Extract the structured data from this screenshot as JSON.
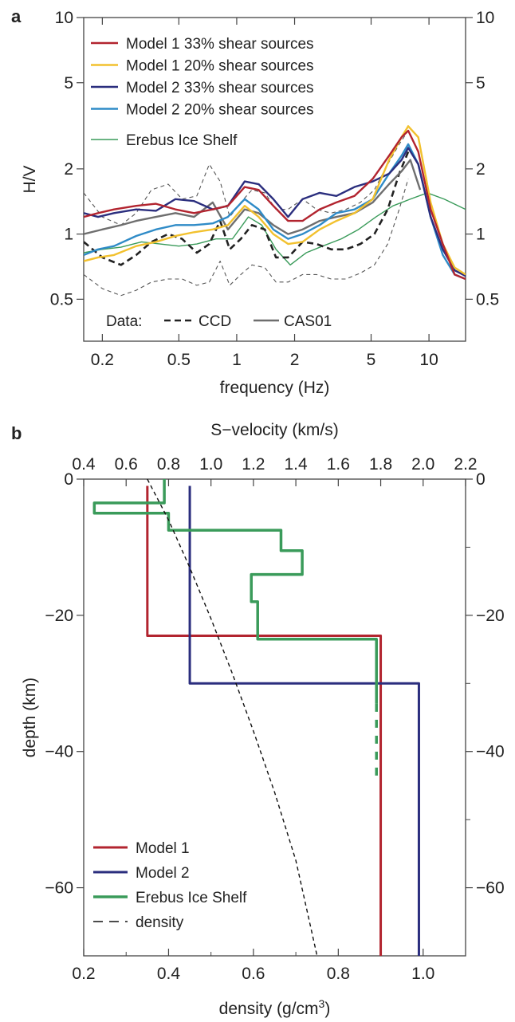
{
  "chart_data": [
    {
      "panel": "a",
      "type": "line",
      "xlabel": "frequency (Hz)",
      "ylabel": "H/V",
      "xscale": "log",
      "yscale": "log",
      "xlim": [
        0.16,
        15.5
      ],
      "ylim": [
        0.32,
        10
      ],
      "xticks": [
        0.2,
        0.5,
        1,
        2,
        5,
        10
      ],
      "xtick_labels": [
        "0.2",
        "0.5",
        "1",
        "2",
        "5",
        "10"
      ],
      "yticks": [
        0.5,
        1,
        2,
        5,
        10
      ],
      "ytick_labels": [
        "0.5",
        "1",
        "2",
        "5",
        "10"
      ],
      "right_ytick_labels": [
        "0.5",
        "1",
        "2",
        "5",
        "10"
      ],
      "legend_position": "top-left",
      "data_legend": {
        "prefix": "Data:",
        "items": [
          "CCD",
          "CAS01"
        ]
      },
      "series": [
        {
          "name": "Model 1  33% shear sources",
          "color": "#b2242f",
          "width": 2.4,
          "x": [
            0.16,
            0.19,
            0.23,
            0.3,
            0.38,
            0.48,
            0.6,
            0.75,
            0.9,
            1.1,
            1.3,
            1.55,
            1.85,
            2.2,
            2.7,
            3.3,
            4.1,
            5.1,
            6.2,
            7.2,
            7.8,
            8.8,
            10.2,
            11.8,
            13.6,
            15.5
          ],
          "y": [
            1.2,
            1.25,
            1.3,
            1.35,
            1.38,
            1.3,
            1.25,
            1.3,
            1.35,
            1.65,
            1.6,
            1.35,
            1.15,
            1.15,
            1.3,
            1.4,
            1.5,
            1.8,
            2.3,
            2.8,
            3.0,
            2.4,
            1.3,
            0.9,
            0.65,
            0.62
          ]
        },
        {
          "name": "Model 1  20% shear sources",
          "color": "#f2c12e",
          "width": 2.4,
          "x": [
            0.16,
            0.19,
            0.23,
            0.3,
            0.38,
            0.48,
            0.6,
            0.75,
            0.9,
            1.1,
            1.3,
            1.55,
            1.85,
            2.2,
            2.7,
            3.3,
            4.1,
            5.1,
            6.2,
            7.2,
            7.8,
            8.8,
            10.2,
            11.8,
            13.6,
            15.5
          ],
          "y": [
            0.75,
            0.78,
            0.8,
            0.88,
            0.92,
            0.98,
            1.02,
            1.05,
            1.1,
            1.35,
            1.2,
            1.0,
            0.9,
            0.92,
            1.05,
            1.15,
            1.25,
            1.45,
            2.2,
            2.8,
            3.15,
            2.8,
            1.4,
            0.9,
            0.7,
            0.65
          ]
        },
        {
          "name": "Model 2  33% shear sources",
          "color": "#2b2e7e",
          "width": 2.4,
          "x": [
            0.16,
            0.19,
            0.23,
            0.3,
            0.38,
            0.48,
            0.6,
            0.75,
            0.9,
            1.1,
            1.3,
            1.55,
            1.85,
            2.2,
            2.7,
            3.3,
            4.1,
            5.1,
            6.2,
            7.2,
            7.8,
            8.8,
            10.2,
            11.8,
            13.6,
            15.5
          ],
          "y": [
            1.25,
            1.2,
            1.25,
            1.3,
            1.28,
            1.45,
            1.42,
            1.3,
            1.35,
            1.75,
            1.7,
            1.45,
            1.2,
            1.45,
            1.55,
            1.5,
            1.65,
            1.75,
            1.9,
            2.2,
            2.5,
            2.1,
            1.2,
            0.85,
            0.68,
            0.64
          ]
        },
        {
          "name": "Model 2  20% shear sources",
          "color": "#2f8bc7",
          "width": 2.4,
          "x": [
            0.16,
            0.19,
            0.23,
            0.3,
            0.38,
            0.48,
            0.6,
            0.75,
            0.9,
            1.1,
            1.3,
            1.55,
            1.85,
            2.2,
            2.7,
            3.3,
            4.1,
            5.1,
            6.2,
            7.2,
            7.8,
            8.8,
            10.2,
            11.8,
            13.6,
            15.5
          ],
          "y": [
            0.8,
            0.85,
            0.88,
            0.98,
            1.05,
            1.1,
            1.1,
            1.12,
            1.2,
            1.45,
            1.3,
            1.05,
            0.95,
            1.0,
            1.1,
            1.25,
            1.3,
            1.45,
            1.9,
            2.3,
            2.6,
            2.1,
            1.2,
            0.8,
            0.65,
            0.62
          ]
        },
        {
          "name": "Erebus Ice Shelf",
          "color": "#3a9b5a",
          "width": 1.4,
          "x": [
            0.16,
            0.2,
            0.25,
            0.32,
            0.4,
            0.5,
            0.62,
            0.78,
            0.95,
            1.15,
            1.35,
            1.6,
            1.9,
            2.3,
            2.8,
            3.5,
            4.3,
            5.3,
            6.5,
            8,
            9.8,
            12,
            15.5
          ],
          "y": [
            0.82,
            0.85,
            0.87,
            0.92,
            0.9,
            0.88,
            0.9,
            0.95,
            0.95,
            1.2,
            1.1,
            0.85,
            0.72,
            0.82,
            0.88,
            0.95,
            1.05,
            1.2,
            1.35,
            1.45,
            1.55,
            1.45,
            1.3
          ]
        },
        {
          "name": "CCD",
          "color": "#222222",
          "width": 2.6,
          "dash": "8,5",
          "x": [
            0.16,
            0.2,
            0.25,
            0.3,
            0.36,
            0.44,
            0.52,
            0.62,
            0.72,
            0.82,
            0.92,
            1.05,
            1.2,
            1.4,
            1.6,
            1.85,
            2.2,
            2.6,
            3.1,
            3.7,
            4.4,
            5.2,
            6.1,
            7.0,
            7.8
          ],
          "y": [
            0.92,
            0.78,
            0.72,
            0.8,
            0.92,
            1.0,
            0.95,
            0.82,
            0.9,
            1.15,
            0.85,
            0.95,
            1.1,
            1.05,
            0.78,
            0.78,
            0.92,
            0.9,
            0.85,
            0.85,
            0.9,
            1.0,
            1.3,
            1.9,
            2.4
          ]
        },
        {
          "name": "CCD upper",
          "color": "#555555",
          "width": 1.1,
          "dash": "5,4",
          "x": [
            0.16,
            0.2,
            0.25,
            0.3,
            0.36,
            0.44,
            0.52,
            0.62,
            0.72,
            0.82,
            0.92,
            1.05,
            1.2,
            1.4,
            1.6,
            1.85,
            2.2,
            2.6,
            3.1,
            3.7,
            4.4,
            5.2,
            6.1,
            7.0,
            7.8
          ],
          "y": [
            1.55,
            1.2,
            1.1,
            1.25,
            1.6,
            1.7,
            1.45,
            1.5,
            2.1,
            1.75,
            1.2,
            1.4,
            1.6,
            1.55,
            1.3,
            1.3,
            1.45,
            1.3,
            1.25,
            1.3,
            1.4,
            1.6,
            2.1,
            2.6,
            3.0
          ]
        },
        {
          "name": "CCD lower",
          "color": "#555555",
          "width": 1.1,
          "dash": "5,4",
          "x": [
            0.16,
            0.2,
            0.25,
            0.3,
            0.36,
            0.44,
            0.52,
            0.62,
            0.72,
            0.82,
            0.92,
            1.05,
            1.2,
            1.4,
            1.6,
            1.85,
            2.2,
            2.6,
            3.1,
            3.7,
            4.4,
            5.2,
            6.1,
            7.0,
            7.8
          ],
          "y": [
            0.65,
            0.56,
            0.52,
            0.55,
            0.6,
            0.62,
            0.62,
            0.58,
            0.6,
            0.75,
            0.58,
            0.65,
            0.72,
            0.7,
            0.6,
            0.6,
            0.65,
            0.65,
            0.62,
            0.62,
            0.66,
            0.72,
            0.9,
            1.3,
            1.8
          ]
        },
        {
          "name": "CAS01",
          "color": "#6e6e6e",
          "width": 2.4,
          "x": [
            0.16,
            0.2,
            0.25,
            0.3,
            0.38,
            0.48,
            0.6,
            0.75,
            0.9,
            1.1,
            1.3,
            1.55,
            1.85,
            2.2,
            2.7,
            3.3,
            4.1,
            5.1,
            6.2,
            7.2,
            8.0,
            9.0
          ],
          "y": [
            1.0,
            1.05,
            1.1,
            1.15,
            1.2,
            1.25,
            1.2,
            1.4,
            1.05,
            1.3,
            1.25,
            1.1,
            1.0,
            1.05,
            1.15,
            1.2,
            1.25,
            1.4,
            1.7,
            1.95,
            2.2,
            1.6
          ]
        }
      ],
      "legend": [
        {
          "label": "Model 1  33% shear sources",
          "color": "#b2242f",
          "width": 2.4
        },
        {
          "label": "Model 1  20% shear sources",
          "color": "#f2c12e",
          "width": 2.4
        },
        {
          "label": "Model 2  33% shear sources",
          "color": "#2b2e7e",
          "width": 2.4
        },
        {
          "label": "Model 2  20% shear sources",
          "color": "#2f8bc7",
          "width": 2.4
        },
        {
          "label": "Erebus Ice Shelf",
          "color": "#3a9b5a",
          "width": 1.4
        }
      ]
    },
    {
      "panel": "b",
      "type": "line",
      "top_xlabel": "S−velocity (km/s)",
      "bottom_xlabel": "density (g/cm",
      "bottom_xlabel_sup": "3",
      "bottom_xlabel_end": ")",
      "ylabel": "depth (km)",
      "velocity_lim": [
        0.4,
        2.2
      ],
      "density_lim": [
        0.2,
        1.1
      ],
      "ylim": [
        -70,
        0
      ],
      "top_ticks": [
        0.4,
        0.6,
        0.8,
        1.0,
        1.2,
        1.4,
        1.6,
        1.8,
        2.0,
        2.2
      ],
      "top_tick_labels": [
        "0.4",
        "0.6",
        "0.8",
        "1.0",
        "1.2",
        "1.4",
        "1.6",
        "1.8",
        "2.0",
        "2.2"
      ],
      "bottom_ticks": [
        0.2,
        0.4,
        0.6,
        0.8,
        1.0
      ],
      "bottom_tick_labels": [
        "0.2",
        "0.4",
        "0.6",
        "0.8",
        "1.0"
      ],
      "yticks": [
        0,
        -20,
        -40,
        -60
      ],
      "ytick_labels": [
        "0",
        "−20",
        "−40",
        "−60"
      ],
      "right_ytick_labels": [
        "0",
        "−20",
        "−40",
        "−60"
      ],
      "legend_position": "bottom-left",
      "series": [
        {
          "name": "Model 1",
          "color": "#b2242f",
          "width": 3,
          "velocity": [
            0.7,
            0.7,
            0.7,
            1.8,
            1.8,
            1.8
          ],
          "depth": [
            -1,
            -2.5,
            -23,
            -23,
            -50,
            -70
          ]
        },
        {
          "name": "Model 2",
          "color": "#2b2e7e",
          "width": 3,
          "velocity": [
            0.9,
            0.9,
            0.9,
            0.9,
            1.98,
            1.98
          ],
          "depth": [
            -1,
            -3,
            -4,
            -30,
            -30,
            -70
          ]
        },
        {
          "name": "Erebus Ice Shelf",
          "color": "#3a9b5a",
          "width": 3.5,
          "velocity": [
            0.78,
            0.78,
            0.45,
            0.45,
            0.8,
            0.8,
            1.33,
            1.33,
            1.43,
            1.43,
            1.19,
            1.19,
            1.22,
            1.22,
            1.78,
            1.78
          ],
          "depth": [
            0,
            -3.5,
            -3.5,
            -5,
            -5,
            -7.5,
            -7.5,
            -10.5,
            -10.5,
            -14,
            -14,
            -18,
            -18,
            -23.5,
            -23.5,
            -33
          ]
        },
        {
          "name": "density",
          "color": "#111111",
          "width": 1.4,
          "dash": "5,4",
          "density": [
            0.35,
            0.4,
            0.45,
            0.5,
            0.55,
            0.6,
            0.65,
            0.7,
            0.75
          ],
          "depth": [
            0,
            -6,
            -13,
            -20.5,
            -28.5,
            -37,
            -46,
            -56,
            -70
          ]
        }
      ],
      "legend": [
        {
          "label": "Model 1",
          "color": "#b2242f",
          "width": 3
        },
        {
          "label": "Model 2",
          "color": "#2b2e7e",
          "width": 3
        },
        {
          "label": "Erebus Ice Shelf",
          "color": "#3a9b5a",
          "width": 3.5
        },
        {
          "label": "density",
          "color": "#111111",
          "width": 1.4,
          "dash": "12,8"
        }
      ]
    }
  ]
}
